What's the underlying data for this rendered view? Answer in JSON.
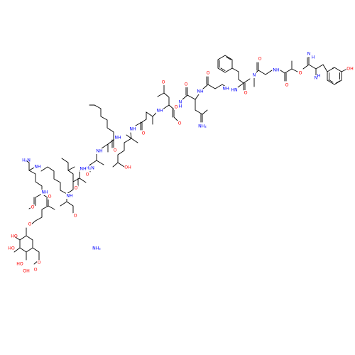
{
  "colors": {
    "bond": "#000000",
    "oxygen": "#ff0000",
    "nitrogen": "#0000ff",
    "carbon": "#000000"
  },
  "atoms": [
    {
      "id": "a1",
      "label": "OH",
      "element": "O"
    },
    {
      "id": "a2",
      "label": "H",
      "element": "N"
    },
    {
      "id": "a3",
      "label": "N",
      "element": "N"
    },
    {
      "id": "a4",
      "label": "H",
      "element": "N"
    },
    {
      "id": "a5",
      "label": "N",
      "element": "N"
    },
    {
      "id": "a6",
      "label": "O",
      "element": "O"
    },
    {
      "id": "a7",
      "label": "O",
      "element": "O"
    },
    {
      "id": "a8",
      "label": "NH",
      "element": "N"
    },
    {
      "id": "a9",
      "label": "O",
      "element": "O"
    },
    {
      "id": "a10",
      "label": "N",
      "element": "N"
    },
    {
      "id": "a11",
      "label": "HN",
      "element": "N"
    },
    {
      "id": "a12",
      "label": "O",
      "element": "O"
    },
    {
      "id": "a13",
      "label": "NH",
      "element": "N"
    },
    {
      "id": "a14",
      "label": "O",
      "element": "O"
    },
    {
      "id": "a15",
      "label": "NH",
      "element": "N"
    },
    {
      "id": "a16",
      "label": "O",
      "element": "O"
    },
    {
      "id": "a17",
      "label": "NH₂",
      "element": "N"
    },
    {
      "id": "a18",
      "label": "O",
      "element": "O"
    },
    {
      "id": "a19",
      "label": "N",
      "element": "N"
    },
    {
      "id": "a20",
      "label": "H",
      "element": "N"
    },
    {
      "id": "a21",
      "label": "O",
      "element": "O"
    },
    {
      "id": "a22",
      "label": "NH",
      "element": "N"
    },
    {
      "id": "a23",
      "label": "O",
      "element": "O"
    },
    {
      "id": "a24",
      "label": "OH",
      "element": "O"
    },
    {
      "id": "a25",
      "label": "NH",
      "element": "N"
    },
    {
      "id": "a26",
      "label": "O",
      "element": "O"
    },
    {
      "id": "a27",
      "label": "H₂N",
      "element": "N"
    },
    {
      "id": "a28",
      "label": "NH",
      "element": "N"
    },
    {
      "id": "a29",
      "label": "O",
      "element": "O"
    },
    {
      "id": "a30",
      "label": "NH",
      "element": "N"
    },
    {
      "id": "a31",
      "label": "O",
      "element": "O"
    },
    {
      "id": "a32",
      "label": "NH",
      "element": "N"
    },
    {
      "id": "a33",
      "label": "O",
      "element": "O"
    },
    {
      "id": "a34",
      "label": "NH",
      "element": "N"
    },
    {
      "id": "a35",
      "label": "O",
      "element": "O"
    },
    {
      "id": "a36",
      "label": "NH₂",
      "element": "N"
    },
    {
      "id": "a37",
      "label": "O",
      "element": "O"
    },
    {
      "id": "a38",
      "label": "NH",
      "element": "N"
    },
    {
      "id": "a39",
      "label": "O",
      "element": "O"
    },
    {
      "id": "a40",
      "label": "H₂N",
      "element": "N"
    },
    {
      "id": "a41",
      "label": "NH",
      "element": "N"
    },
    {
      "id": "a42",
      "label": "O",
      "element": "O"
    },
    {
      "id": "a43",
      "label": "O",
      "element": "O"
    },
    {
      "id": "a44",
      "label": "HO",
      "element": "O"
    },
    {
      "id": "a45",
      "label": "HO",
      "element": "O"
    },
    {
      "id": "a46",
      "label": "HO",
      "element": "O"
    },
    {
      "id": "a47",
      "label": "O",
      "element": "O"
    },
    {
      "id": "a48",
      "label": "OH",
      "element": "O"
    }
  ]
}
